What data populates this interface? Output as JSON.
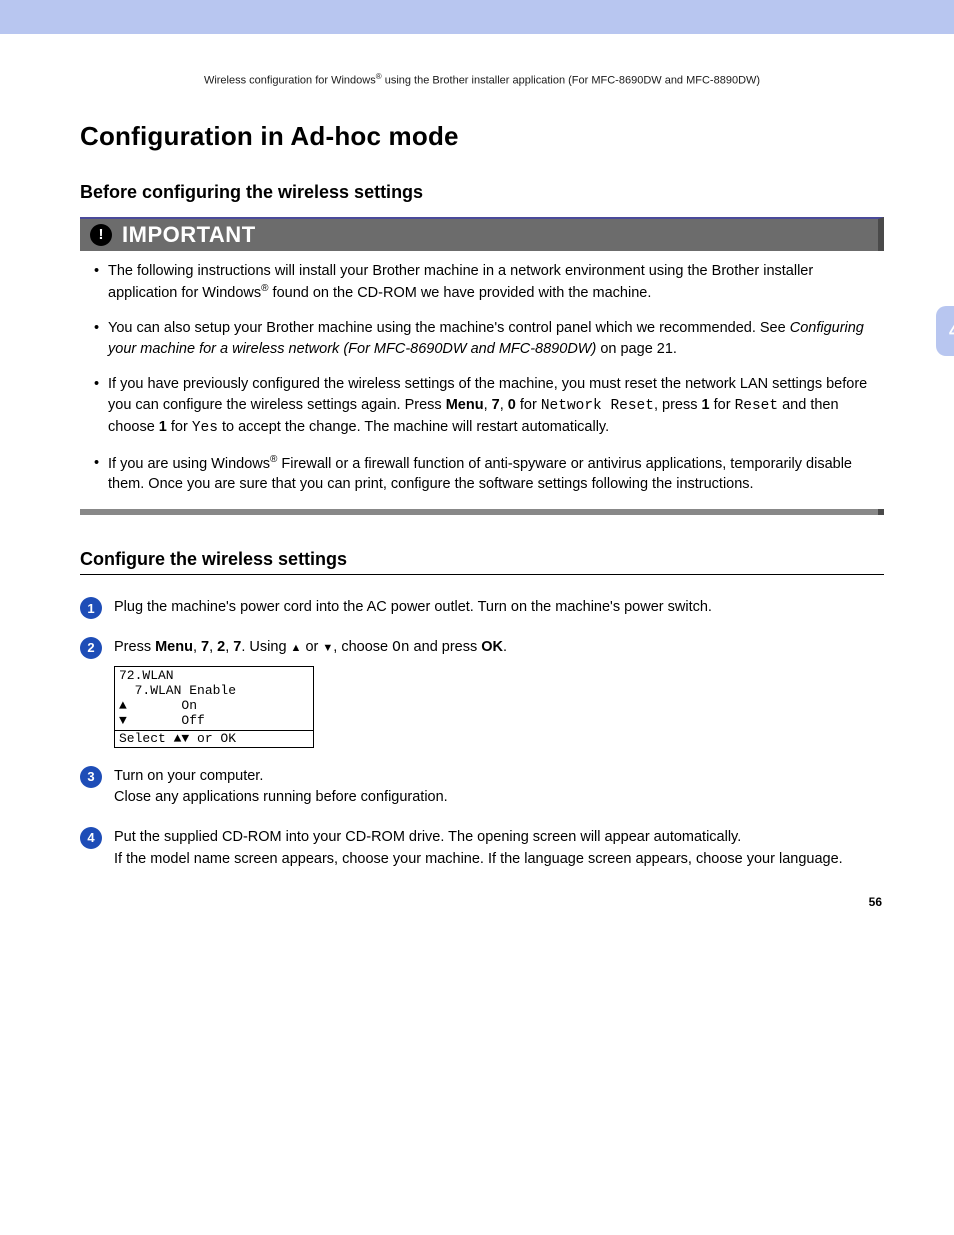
{
  "colors": {
    "stripe": "#b8c6f0",
    "important_bar_bg": "#6c6c6c",
    "important_bar_accent": "#4a4a9a",
    "step_circle": "#1e4db7",
    "side_tab_bg": "#b8c6f0",
    "side_tab_text": "#ffffff"
  },
  "header": {
    "pre": "Wireless configuration for Windows",
    "sup": "®",
    "post": " using the Brother installer application (For MFC-8690DW and MFC-8890DW)"
  },
  "h1": "Configuration in Ad-hoc mode",
  "section1": {
    "title": "Before configuring the wireless settings",
    "important_label": "IMPORTANT",
    "bullets": {
      "b0": {
        "t0": "The following instructions will install your Brother machine in a network environment using the Brother installer application for Windows",
        "sup": "®",
        "t1": " found on the CD-ROM we have provided with the machine."
      },
      "b1": {
        "t0": "You can also setup your Brother machine using the machine's control panel which we recommended. See ",
        "i0": "Configuring your machine for a wireless network (For MFC-8690DW and MFC-8890DW)",
        "t1": " on page 21."
      },
      "b2": {
        "t0": "If you have previously configured the wireless settings of the machine, you must reset the network LAN settings before you can configure the wireless settings again. Press ",
        "b0": "Menu",
        "c0": ", ",
        "b1": "7",
        "c1": ", ",
        "b2": "0",
        "c2": " for ",
        "m0": "Network Reset",
        "c3": ", press ",
        "b3": "1",
        "c4": " for ",
        "m1": "Reset",
        "c5": " and then choose ",
        "b4": "1",
        "c6": " for ",
        "m2": "Yes",
        "c7": " to accept the change. The machine will restart automatically."
      },
      "b3": {
        "t0": "If you are using Windows",
        "sup": "®",
        "t1": " Firewall or a firewall function of anti-spyware or antivirus applications, temporarily disable them. Once you are sure that you can print, configure the software settings following the instructions."
      }
    }
  },
  "section2": {
    "title": "Configure the wireless settings",
    "steps": {
      "s1": {
        "num": "1",
        "text": "Plug the machine's power cord into the AC power outlet. Turn on the machine's power switch."
      },
      "s2": {
        "num": "2",
        "t0": "Press ",
        "b0": "Menu",
        "c0": ", ",
        "b1": "7",
        "c1": ", ",
        "b2": "2",
        "c2": ", ",
        "b3": "7",
        "t1": ". Using ",
        "a0": "▲",
        "t2": " or ",
        "a1": "▼",
        "t3": ", choose ",
        "m0": "On",
        "t4": " and press ",
        "b4": "OK",
        "t5": ".",
        "lcd": {
          "l0": "72.WLAN",
          "l1": "  7.WLAN Enable",
          "l2": "▲       On",
          "l3": "▼       Off",
          "l4": "Select ▲▼ or OK"
        }
      },
      "s3": {
        "num": "3",
        "line0": "Turn on your computer.",
        "line1": "Close any applications running before configuration."
      },
      "s4": {
        "num": "4",
        "line0": "Put the supplied CD-ROM into your CD-ROM drive. The opening screen will appear automatically.",
        "line1": "If the model name screen appears, choose your machine. If the language screen appears, choose your language."
      }
    }
  },
  "side_tab": "4",
  "page_number": "56"
}
